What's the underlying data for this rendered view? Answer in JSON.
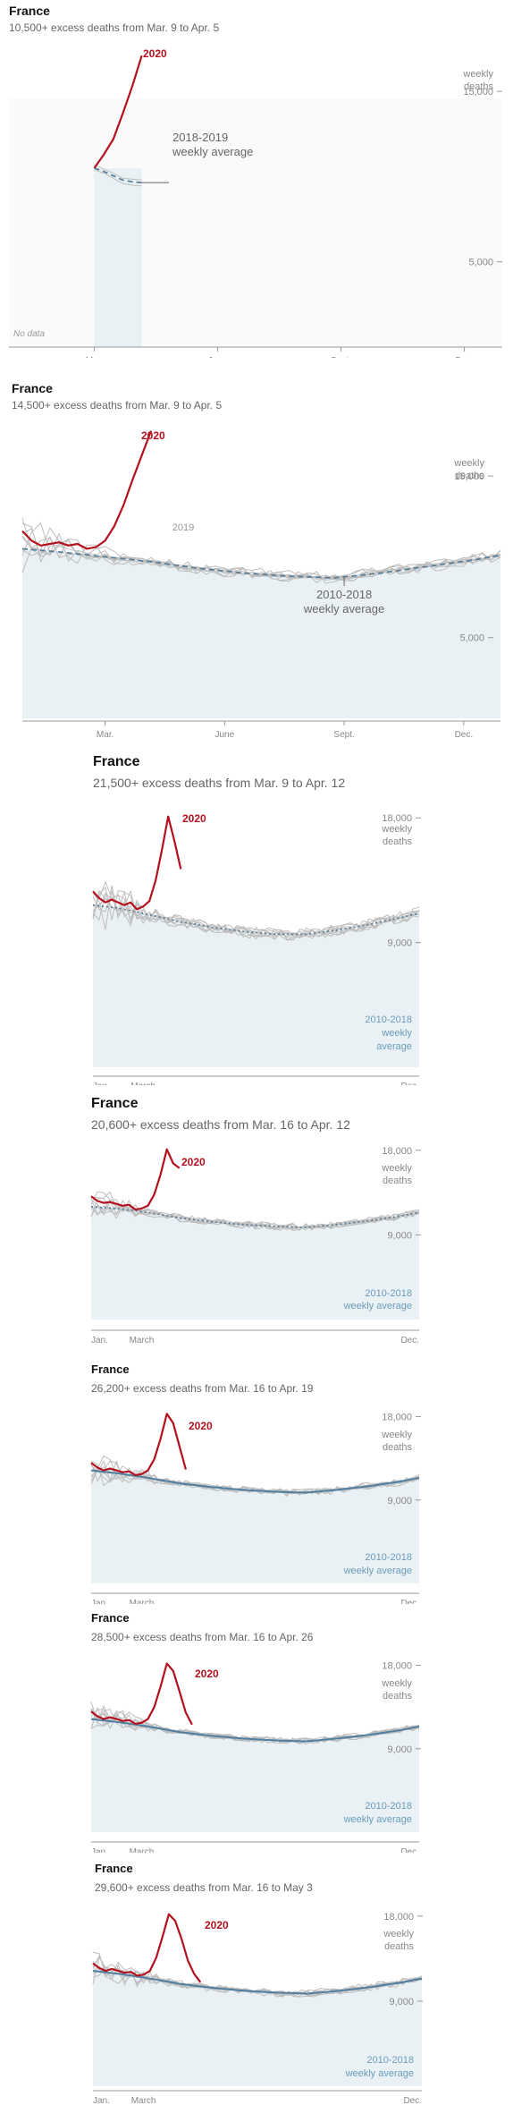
{
  "chart_data": [
    {
      "type": "line",
      "title": "France",
      "subtitle": "10,500+ excess deaths from Mar. 9 to Apr. 5",
      "x_axis_labels": [
        "Mar.",
        "June",
        "Sept.",
        "Dec."
      ],
      "y_tick_labels": [
        "15,000",
        "5,000"
      ],
      "y_unit_label": [
        "weekly",
        "deaths"
      ],
      "ylim": [
        0,
        18000
      ],
      "no_data_label": "No data",
      "series": [
        {
          "name": "2020",
          "color": "#b4111f",
          "weeks": [
            10,
            11,
            12,
            13,
            14,
            15
          ],
          "values": [
            10500,
            11300,
            12200,
            13700,
            15300,
            17100
          ]
        },
        {
          "name": "2018-2019 weekly average",
          "color": "#5b7f99",
          "style": "dashed",
          "weeks": [
            10,
            11,
            12,
            13,
            14,
            15
          ],
          "values": [
            10500,
            10300,
            10050,
            9800,
            9700,
            9650
          ]
        }
      ],
      "other_years_label": "",
      "baseline_label": [
        "2018-2019",
        "weekly average"
      ]
    },
    {
      "type": "line",
      "title": "France",
      "subtitle": "14,500+ excess deaths from Mar. 9 to Apr. 5",
      "x_axis_labels": [
        "Mar.",
        "June",
        "Sept.",
        "Dec."
      ],
      "y_tick_labels": [
        "15,000",
        "5,000"
      ],
      "y_unit_label": [
        "weekly",
        "deaths"
      ],
      "ylim": [
        0,
        18000
      ],
      "series": [
        {
          "name": "2020",
          "color": "#b4111f",
          "weeks": [
            1,
            2,
            3,
            4,
            5,
            6,
            7,
            8,
            9,
            10,
            11,
            12,
            13,
            14,
            15
          ],
          "values": [
            11600,
            11000,
            10700,
            10800,
            10900,
            10700,
            10800,
            10500,
            10600,
            11000,
            11900,
            13200,
            14800,
            16300,
            17800
          ]
        },
        {
          "name": "2010-2018 weekly average",
          "color": "#5b7f99",
          "style": "dashed",
          "weeks": [
            1,
            5,
            10,
            15,
            20,
            25,
            30,
            35,
            40,
            45,
            50,
            53
          ],
          "values": [
            10500,
            10300,
            10000,
            9700,
            9300,
            9000,
            8800,
            8700,
            9000,
            9400,
            9800,
            10100
          ]
        }
      ],
      "other_years_label": "2019",
      "baseline_label": [
        "2010-2018",
        "weekly average"
      ]
    },
    {
      "type": "line",
      "title": "France",
      "subtitle": "21,500+ excess deaths from Mar. 9 to Apr. 12",
      "x_axis_labels": [
        "Jan.",
        "March",
        "Dec."
      ],
      "y_tick_labels": [
        "18,000",
        "9,000"
      ],
      "y_unit_label": [
        "weekly",
        "deaths"
      ],
      "ylim": [
        0,
        19500
      ],
      "series": [
        {
          "name": "2020",
          "color": "#b4111f",
          "weeks": [
            1,
            2,
            3,
            4,
            5,
            6,
            7,
            8,
            9,
            10,
            11,
            12,
            13,
            14,
            15
          ],
          "values": [
            12700,
            12200,
            11900,
            12100,
            11900,
            11700,
            11900,
            11400,
            11600,
            12000,
            13500,
            15700,
            18100,
            16300,
            14300
          ]
        },
        {
          "name": "2010-2018 weekly average",
          "color": "#5b7f99",
          "style": "dotted",
          "weeks": [
            1,
            5,
            10,
            15,
            20,
            25,
            30,
            35,
            40,
            45,
            50,
            53
          ],
          "values": [
            11700,
            11500,
            11000,
            10500,
            10100,
            9800,
            9600,
            9600,
            9900,
            10300,
            10800,
            11100
          ]
        }
      ],
      "other_years_label": "",
      "baseline_label": [
        "2010-2018",
        "weekly",
        "average"
      ]
    },
    {
      "type": "line",
      "title": "France",
      "subtitle": "20,600+ excess deaths from Mar. 16 to Apr. 12",
      "x_axis_labels": [
        "Jan.",
        "March",
        "Dec."
      ],
      "y_tick_labels": [
        "18,000",
        "9,000"
      ],
      "y_unit_label": [
        "weekly",
        "deaths"
      ],
      "ylim": [
        0,
        19500
      ],
      "series": [
        {
          "name": "2020",
          "color": "#b4111f",
          "weeks": [
            1,
            2,
            3,
            4,
            5,
            6,
            7,
            8,
            9,
            10,
            11,
            12,
            13,
            14,
            15
          ],
          "values": [
            13100,
            12600,
            12400,
            12500,
            12300,
            12100,
            12200,
            11700,
            11800,
            12100,
            13300,
            15400,
            18100,
            16600,
            16100
          ]
        },
        {
          "name": "2010-2018 weekly average",
          "color": "#5b7f99",
          "style": "dotted",
          "weeks": [
            1,
            5,
            10,
            15,
            20,
            25,
            30,
            35,
            40,
            45,
            50,
            53
          ],
          "values": [
            12000,
            11800,
            11400,
            10800,
            10400,
            10100,
            9900,
            9800,
            10100,
            10500,
            11000,
            11400
          ]
        }
      ],
      "other_years_label": "",
      "baseline_label": [
        "2010-2018",
        "weekly average"
      ]
    },
    {
      "type": "line",
      "title": "France",
      "subtitle": "26,200+ excess deaths from Mar. 16 to Apr. 19",
      "x_axis_labels": [
        "Jan.",
        "March",
        "Dec."
      ],
      "y_tick_labels": [
        "18,000",
        "9,000"
      ],
      "y_unit_label": [
        "weekly",
        "deaths"
      ],
      "ylim": [
        0,
        19500
      ],
      "series": [
        {
          "name": "2020",
          "color": "#b4111f",
          "weeks": [
            1,
            2,
            3,
            4,
            5,
            6,
            7,
            8,
            9,
            10,
            11,
            12,
            13,
            14,
            15,
            16
          ],
          "values": [
            13000,
            12500,
            12200,
            12400,
            12200,
            12000,
            12100,
            11700,
            11800,
            12200,
            13400,
            15600,
            18300,
            17300,
            14800,
            12300
          ]
        },
        {
          "name": "2010-2018 weekly average",
          "color": "#4f7ea1",
          "style": "solid",
          "weeks": [
            1,
            5,
            10,
            15,
            20,
            25,
            30,
            35,
            40,
            45,
            50,
            53
          ],
          "values": [
            12200,
            11900,
            11400,
            10800,
            10400,
            10100,
            9900,
            9800,
            10100,
            10500,
            11000,
            11400
          ]
        }
      ],
      "other_years_label": "",
      "baseline_label": [
        "2010-2018",
        "weekly average"
      ]
    },
    {
      "type": "line",
      "title": "France",
      "subtitle": "28,500+ excess deaths from Mar. 16 to Apr. 26",
      "x_axis_labels": [
        "Jan.",
        "March",
        "Dec."
      ],
      "y_tick_labels": [
        "18,000",
        "9,000"
      ],
      "y_unit_label": [
        "weekly",
        "deaths"
      ],
      "ylim": [
        0,
        19500
      ],
      "series": [
        {
          "name": "2020",
          "color": "#b4111f",
          "weeks": [
            1,
            2,
            3,
            4,
            5,
            6,
            7,
            8,
            9,
            10,
            11,
            12,
            13,
            14,
            15,
            16,
            17
          ],
          "values": [
            13000,
            12500,
            12200,
            12400,
            12200,
            12000,
            12100,
            11700,
            11800,
            12200,
            13500,
            15700,
            18200,
            17400,
            15200,
            12900,
            11600
          ]
        },
        {
          "name": "2010-2018 weekly average",
          "color": "#4f7ea1",
          "style": "solid",
          "weeks": [
            1,
            5,
            10,
            15,
            20,
            25,
            30,
            35,
            40,
            45,
            50,
            53
          ],
          "values": [
            12200,
            11900,
            11400,
            10800,
            10400,
            10100,
            9900,
            9800,
            10100,
            10500,
            11000,
            11400
          ]
        }
      ],
      "other_years_label": "",
      "baseline_label": [
        "2010-2018",
        "weekly average"
      ]
    },
    {
      "type": "line",
      "title": "France",
      "subtitle": "29,600+ excess deaths from Mar. 16 to May 3",
      "x_axis_labels": [
        "Jan.",
        "March",
        "Dec."
      ],
      "y_tick_labels": [
        "18,000",
        "9,000"
      ],
      "y_unit_label": [
        "weekly",
        "deaths"
      ],
      "ylim": [
        0,
        19500
      ],
      "series": [
        {
          "name": "2020",
          "color": "#b4111f",
          "weeks": [
            1,
            2,
            3,
            4,
            5,
            6,
            7,
            8,
            9,
            10,
            11,
            12,
            13,
            14,
            15,
            16,
            17,
            18
          ],
          "values": [
            13000,
            12500,
            12200,
            12400,
            12200,
            12000,
            12100,
            11700,
            11800,
            12200,
            13600,
            15800,
            18200,
            17500,
            15600,
            13300,
            11900,
            11000
          ]
        },
        {
          "name": "2010-2018 weekly average",
          "color": "#4f7ea1",
          "style": "solid",
          "weeks": [
            1,
            5,
            10,
            15,
            20,
            25,
            30,
            35,
            40,
            45,
            50,
            53
          ],
          "values": [
            12200,
            11900,
            11400,
            10800,
            10400,
            10100,
            9900,
            9800,
            10100,
            10500,
            11000,
            11400
          ]
        }
      ],
      "other_years_label": "",
      "baseline_label": [
        "2010-2018",
        "weekly average"
      ]
    }
  ]
}
